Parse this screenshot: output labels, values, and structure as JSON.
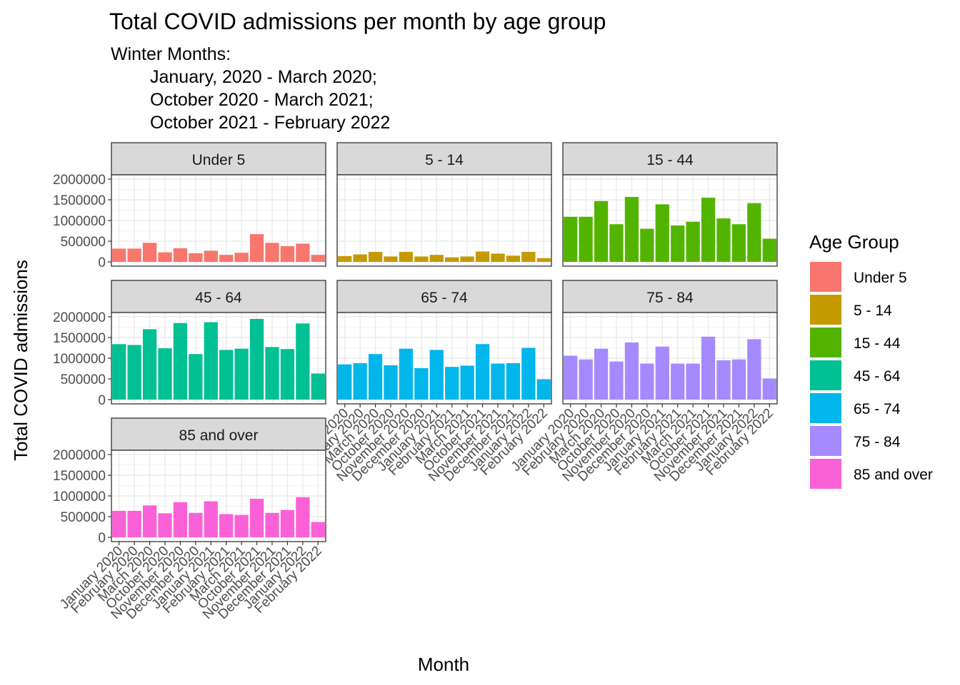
{
  "chart_data": {
    "type": "bar",
    "title": "Total COVID admissions per month by age group",
    "subtitle": [
      "Winter Months:",
      "January, 2020 - March 2020;",
      "October 2020 - March 2021;",
      "October 2021 - February 2022"
    ],
    "xlabel": "Month",
    "ylabel": "Total COVID admissions",
    "ylim": [
      0,
      2000000
    ],
    "yticks": [
      0,
      500000,
      1000000,
      1500000,
      2000000
    ],
    "ytick_labels": [
      "0",
      "500000",
      "1000000",
      "1500000",
      "2000000"
    ],
    "categories": [
      "January 2020",
      "February 2020",
      "March 2020",
      "October 2020",
      "November 2020",
      "December 2020",
      "January 2021",
      "February 2021",
      "March 2021",
      "October 2021",
      "November 2021",
      "December 2021",
      "January 2022",
      "February 2022"
    ],
    "grid": true,
    "legend": {
      "title": "Age Group",
      "position": "right"
    },
    "series": [
      {
        "name": "Under 5",
        "color": "#F8766D",
        "values": [
          320000,
          320000,
          460000,
          230000,
          330000,
          210000,
          270000,
          170000,
          220000,
          670000,
          460000,
          380000,
          440000,
          170000
        ]
      },
      {
        "name": "5 - 14",
        "color": "#C49A00",
        "values": [
          140000,
          180000,
          240000,
          130000,
          240000,
          130000,
          170000,
          110000,
          130000,
          250000,
          200000,
          150000,
          240000,
          90000
        ]
      },
      {
        "name": "15 - 44",
        "color": "#53B400",
        "values": [
          1090000,
          1090000,
          1470000,
          910000,
          1570000,
          800000,
          1390000,
          880000,
          970000,
          1550000,
          1050000,
          910000,
          1420000,
          560000
        ]
      },
      {
        "name": "45 - 64",
        "color": "#00C094",
        "values": [
          1340000,
          1320000,
          1700000,
          1240000,
          1850000,
          1100000,
          1870000,
          1200000,
          1230000,
          1950000,
          1270000,
          1220000,
          1840000,
          630000
        ]
      },
      {
        "name": "65 - 74",
        "color": "#00B6EB",
        "values": [
          850000,
          880000,
          1100000,
          830000,
          1230000,
          760000,
          1200000,
          790000,
          820000,
          1340000,
          870000,
          880000,
          1250000,
          490000
        ]
      },
      {
        "name": "75 - 84",
        "color": "#A58AFF",
        "values": [
          1060000,
          970000,
          1230000,
          920000,
          1380000,
          870000,
          1280000,
          870000,
          870000,
          1520000,
          950000,
          970000,
          1460000,
          510000
        ]
      },
      {
        "name": "85 and over",
        "color": "#FB61D7",
        "values": [
          640000,
          640000,
          770000,
          580000,
          850000,
          590000,
          870000,
          560000,
          540000,
          930000,
          590000,
          660000,
          970000,
          370000
        ]
      }
    ]
  }
}
